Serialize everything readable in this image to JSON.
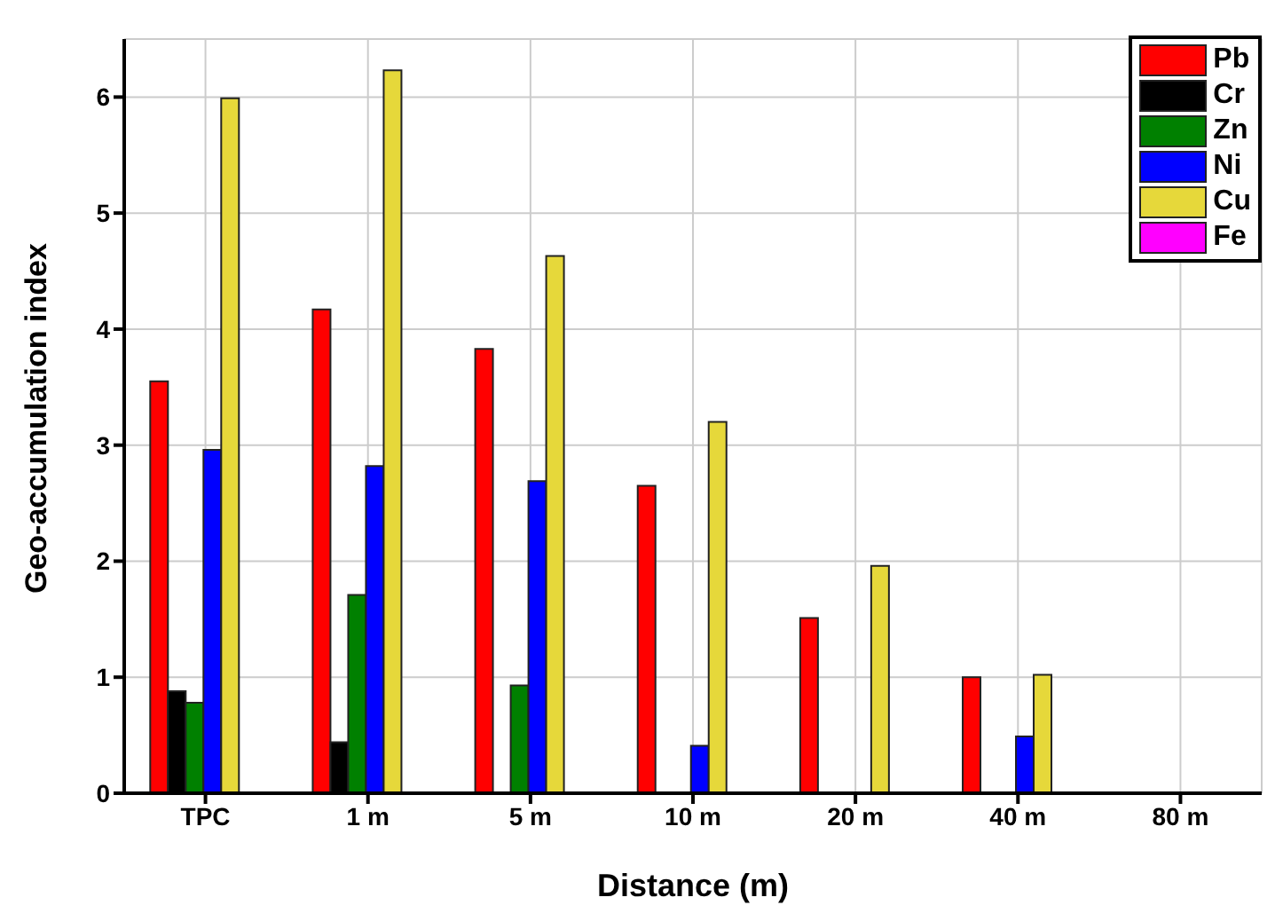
{
  "chart_data": {
    "type": "bar",
    "xlabel": "Distance (m)",
    "ylabel": "Geo-accumulation index",
    "categories": [
      "TPC",
      "1 m",
      "5 m",
      "10 m",
      "20 m",
      "40 m",
      "80 m"
    ],
    "series": [
      {
        "name": "Pb",
        "color": "#ff0000",
        "values": [
          3.55,
          4.17,
          3.83,
          2.65,
          1.51,
          1.0,
          null
        ]
      },
      {
        "name": "Cr",
        "color": "#000000",
        "values": [
          0.88,
          0.44,
          null,
          null,
          null,
          null,
          null
        ]
      },
      {
        "name": "Zn",
        "color": "#008000",
        "values": [
          0.78,
          1.71,
          0.93,
          null,
          null,
          null,
          null
        ]
      },
      {
        "name": "Ni",
        "color": "#0000ff",
        "values": [
          2.96,
          2.82,
          2.69,
          0.41,
          null,
          0.49,
          null
        ]
      },
      {
        "name": "Cu",
        "color": "#e6d83a",
        "values": [
          5.99,
          6.23,
          4.63,
          3.2,
          1.96,
          1.02,
          null
        ]
      },
      {
        "name": "Fe",
        "color": "#ff00ff",
        "values": [
          null,
          null,
          null,
          null,
          null,
          null,
          null
        ]
      }
    ],
    "ylim": [
      0,
      6.5
    ],
    "yticks": [
      0,
      1,
      2,
      3,
      4,
      5,
      6
    ],
    "grid": true,
    "legend": "top right"
  }
}
